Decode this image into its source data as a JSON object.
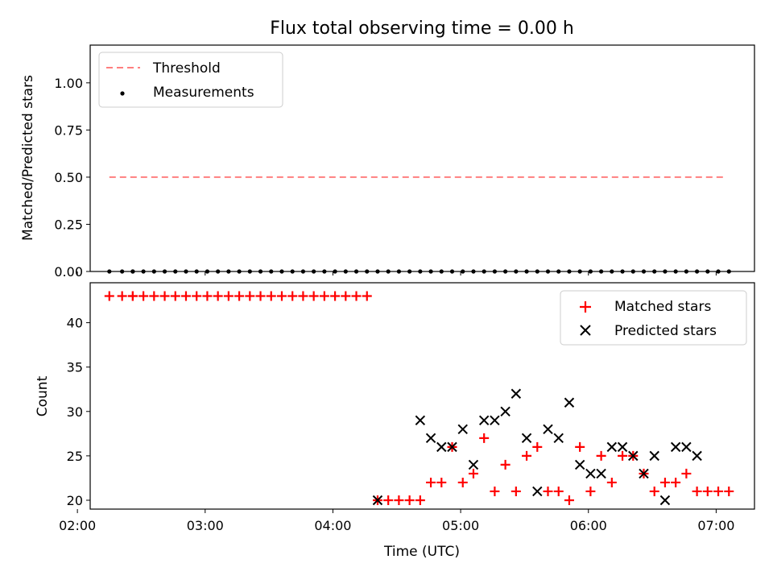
{
  "title": "Flux total observing time = 0.00 h",
  "chart_data": [
    {
      "type": "scatter",
      "title": "Flux total observing time = 0.00 h",
      "ylabel": "Matched/Predicted stars",
      "xlabel": "",
      "xlim": [
        "02:06",
        "07:18"
      ],
      "ylim": [
        0,
        1.2
      ],
      "y_ticks": [
        0.0,
        0.25,
        0.5,
        0.75,
        1.0
      ],
      "y_tick_labels": [
        "0.00",
        "0.25",
        "0.50",
        "0.75",
        "1.00"
      ],
      "legend_position": "top-left",
      "grid": false,
      "series": [
        {
          "name": "Threshold",
          "kind": "line",
          "style": "dashed",
          "color": "#ff7f7f",
          "x": [
            "02:15",
            "07:05"
          ],
          "y": [
            0.5,
            0.5
          ]
        },
        {
          "name": "Measurements",
          "kind": "scatter",
          "marker": "dot",
          "color": "#000000",
          "x": [
            "02:15",
            "02:21",
            "02:26",
            "02:26",
            "02:31",
            "02:36",
            "02:41",
            "02:46",
            "02:51",
            "02:56",
            "03:01",
            "03:06",
            "03:11",
            "03:16",
            "03:21",
            "03:26",
            "03:31",
            "03:36",
            "03:41",
            "03:46",
            "03:51",
            "03:56",
            "04:01",
            "04:06",
            "04:11",
            "04:16",
            "04:21",
            "04:26",
            "04:31",
            "04:36",
            "04:41",
            "04:46",
            "04:51",
            "04:56",
            "05:01",
            "05:06",
            "05:11",
            "05:16",
            "05:21",
            "05:26",
            "05:31",
            "05:36",
            "05:41",
            "05:46",
            "05:51",
            "05:56",
            "06:01",
            "06:06",
            "06:11",
            "06:16",
            "06:21",
            "06:26",
            "06:31",
            "06:36",
            "06:41",
            "06:46",
            "06:51",
            "06:56",
            "07:01",
            "07:06"
          ],
          "y": [
            0,
            0,
            0,
            0,
            0,
            0,
            0,
            0,
            0,
            0,
            0,
            0,
            0,
            0,
            0,
            0,
            0,
            0,
            0,
            0,
            0,
            0,
            0,
            0,
            0,
            0,
            0,
            0,
            0,
            0,
            0,
            0,
            0,
            0,
            0,
            0,
            0,
            0,
            0,
            0,
            0,
            0,
            0,
            0,
            0,
            0,
            0,
            0,
            0,
            0,
            0,
            0,
            0,
            0,
            0,
            0,
            0,
            0,
            0,
            0
          ]
        }
      ]
    },
    {
      "type": "scatter",
      "title": "",
      "xlabel": "Time (UTC)",
      "ylabel": "Count",
      "xlim": [
        "02:06",
        "07:18"
      ],
      "ylim": [
        19,
        44.5
      ],
      "x_ticks": [
        "02:00",
        "03:00",
        "04:00",
        "05:00",
        "06:00",
        "07:00"
      ],
      "y_ticks": [
        20,
        25,
        30,
        35,
        40
      ],
      "legend_position": "top-right",
      "grid": false,
      "series": [
        {
          "name": "Matched stars",
          "marker": "plus",
          "color": "#ff0000",
          "x": [
            "02:15",
            "02:21",
            "02:26",
            "02:26",
            "02:31",
            "02:36",
            "02:41",
            "02:46",
            "02:51",
            "02:56",
            "03:01",
            "03:06",
            "03:11",
            "03:16",
            "03:21",
            "03:26",
            "03:31",
            "03:36",
            "03:41",
            "03:46",
            "03:51",
            "03:56",
            "04:01",
            "04:06",
            "04:11",
            "04:16",
            "04:21",
            "04:26",
            "04:31",
            "04:36",
            "04:41",
            "04:46",
            "04:51",
            "04:56",
            "05:01",
            "05:06",
            "05:11",
            "05:16",
            "05:21",
            "05:26",
            "05:31",
            "05:36",
            "05:41",
            "05:46",
            "05:51",
            "05:56",
            "06:01",
            "06:06",
            "06:11",
            "06:16",
            "06:21",
            "06:26",
            "06:31",
            "06:36",
            "06:41",
            "06:46",
            "06:51",
            "06:56",
            "07:01",
            "07:06"
          ],
          "y": [
            43,
            43,
            43,
            43,
            43,
            43,
            43,
            43,
            43,
            43,
            43,
            43,
            43,
            43,
            43,
            43,
            43,
            43,
            43,
            43,
            43,
            43,
            43,
            43,
            43,
            43,
            20,
            20,
            20,
            20,
            20,
            22,
            22,
            26,
            22,
            23,
            27,
            21,
            24,
            21,
            25,
            26,
            21,
            21,
            20,
            26,
            21,
            25,
            22,
            25,
            25,
            23,
            21,
            22,
            22,
            23,
            21,
            21,
            21,
            21
          ]
        },
        {
          "name": "Predicted stars",
          "marker": "x",
          "color": "#000000",
          "x": [
            "04:21",
            "04:41",
            "04:46",
            "04:51",
            "04:56",
            "05:01",
            "05:06",
            "05:11",
            "05:16",
            "05:21",
            "05:26",
            "05:31",
            "05:36",
            "05:41",
            "05:46",
            "05:51",
            "05:56",
            "06:01",
            "06:06",
            "06:11",
            "06:16",
            "06:21",
            "06:26",
            "06:31",
            "06:36",
            "06:41",
            "06:46",
            "06:51"
          ],
          "y": [
            20,
            29,
            27,
            26,
            26,
            28,
            24,
            29,
            29,
            30,
            32,
            27,
            21,
            28,
            27,
            31,
            24,
            23,
            23,
            26,
            26,
            25,
            23,
            25,
            20,
            26,
            26,
            25
          ]
        }
      ]
    }
  ]
}
